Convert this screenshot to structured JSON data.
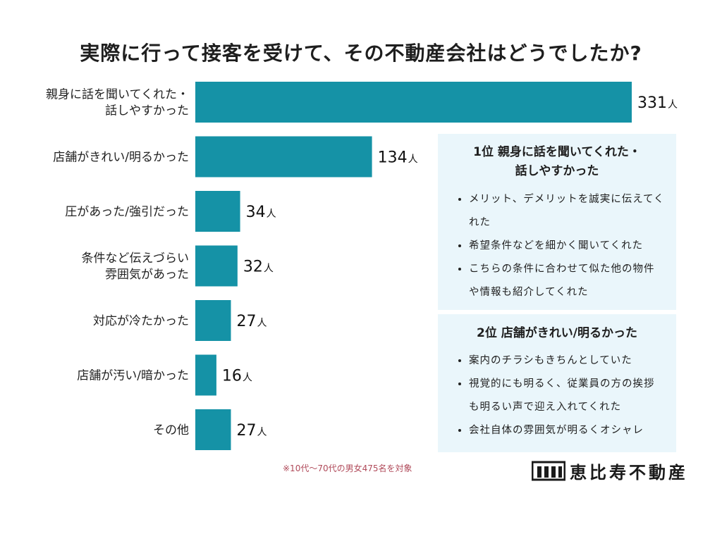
{
  "title": "実際に行って接客を受けて、その不動産会社はどうでしたか?",
  "chart_data": {
    "type": "bar",
    "orientation": "horizontal",
    "categories": [
      [
        "親身に話を聞いてくれた・",
        "話しやすかった"
      ],
      [
        "店舗がきれい/明るかった"
      ],
      [
        "圧があった/強引だった"
      ],
      [
        "条件など伝えづらい",
        "雰囲気があった"
      ],
      [
        "対応が冷たかった"
      ],
      [
        "店舗が汚い/暗かった"
      ],
      [
        "その他"
      ]
    ],
    "values": [
      331,
      134,
      34,
      32,
      27,
      16,
      27
    ],
    "unit": "人",
    "xlim": [
      0,
      331
    ],
    "grid": false,
    "bar_color": "#1592a6"
  },
  "panels": [
    {
      "heading_line1": "1位 親身に話を聞いてくれた・",
      "heading_line2": "話しやすかった",
      "items": [
        "メリット、デメリットを誠実に伝えてくれた",
        "希望条件などを細かく聞いてくれた",
        "こちらの条件に合わせて似た他の物件や情報も紹介してくれた"
      ]
    },
    {
      "heading_line1": "2位 店舗がきれい/明るかった",
      "items": [
        "案内のチラシもきちんとしていた",
        "視覚的にも明るく、従業員の方の挨拶も明るい声で迎え入れてくれた",
        "会社自体の雰囲気が明るくオシャレ"
      ]
    }
  ],
  "note": "※10代〜70代の男女475名を対象",
  "logo": {
    "text": "恵比寿不動産",
    "icon": "building-logo-icon"
  },
  "colors": {
    "panel_bg": "#eaf6fb",
    "note": "#b04a5a"
  }
}
